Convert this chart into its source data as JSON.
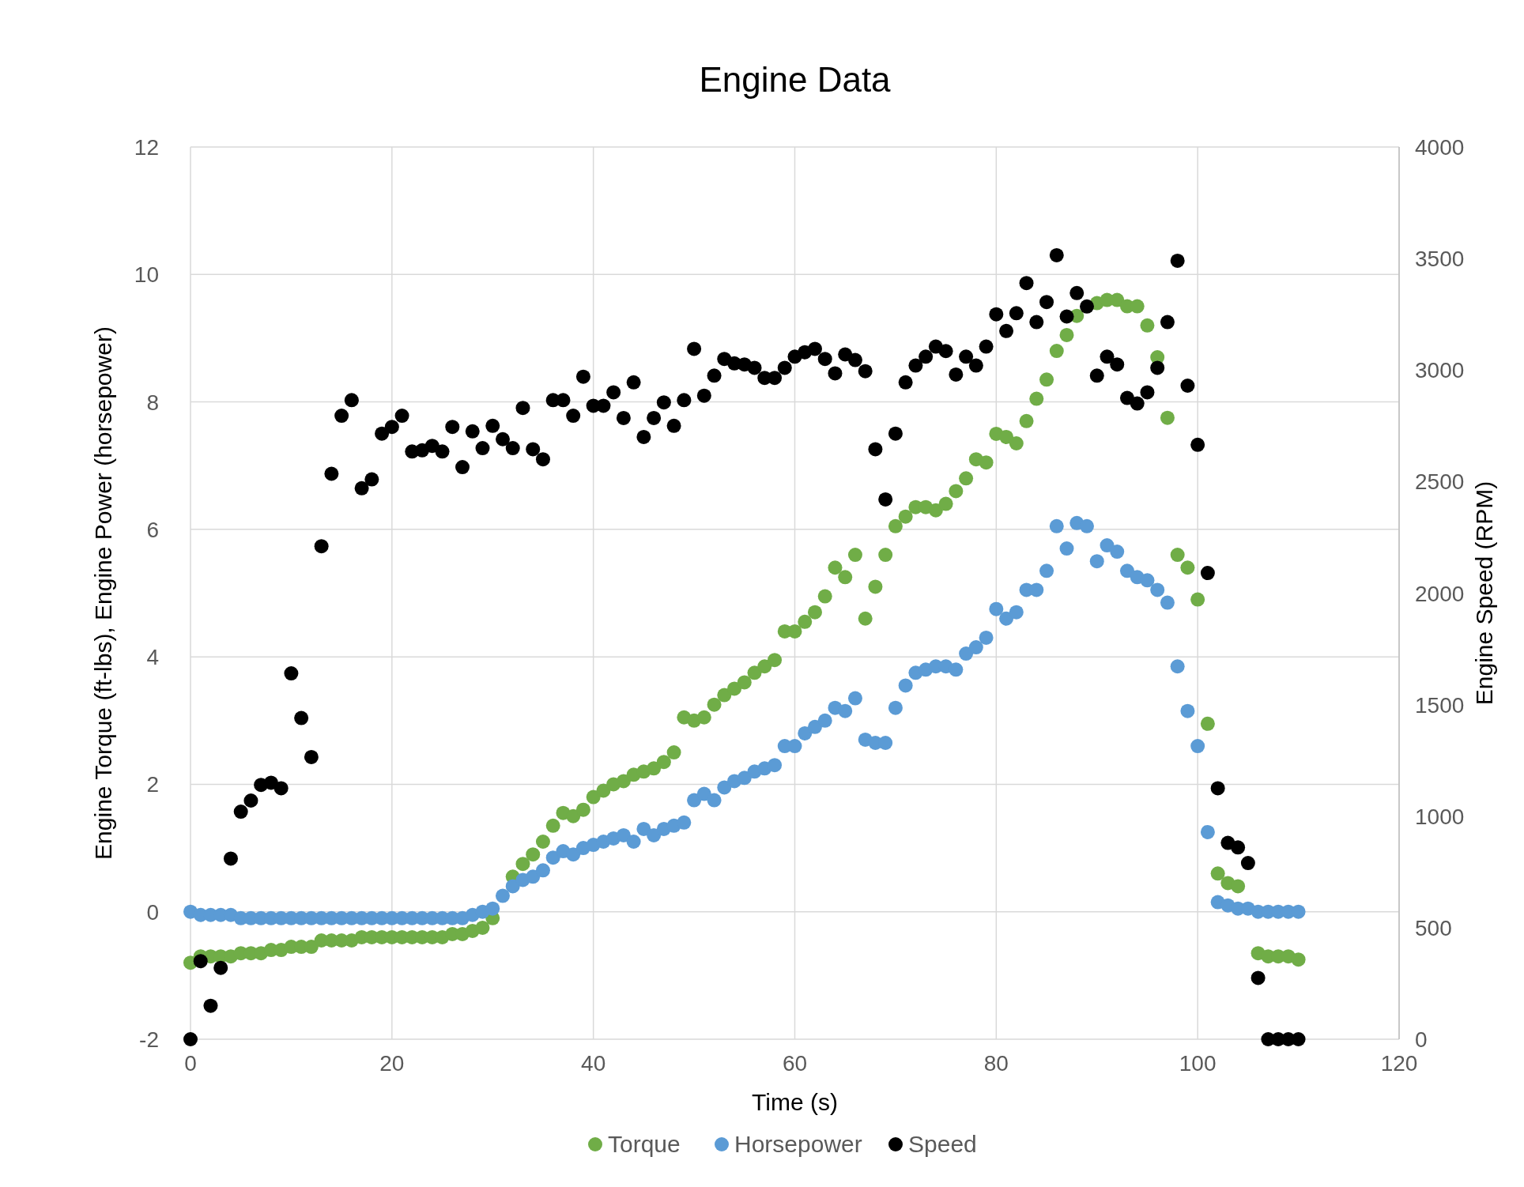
{
  "chart_data": {
    "type": "scatter",
    "title": "Engine Data",
    "xlabel": "Time (s)",
    "ylabel": "Engine Torque (ft-lbs), Engine Power (horsepower)",
    "y2label": "Engine Speed (RPM)",
    "x": [
      0,
      1,
      2,
      3,
      4,
      5,
      6,
      7,
      8,
      9,
      10,
      11,
      12,
      13,
      14,
      15,
      16,
      17,
      18,
      19,
      20,
      21,
      22,
      23,
      24,
      25,
      26,
      27,
      28,
      29,
      30,
      31,
      32,
      33,
      34,
      35,
      36,
      37,
      38,
      39,
      40,
      41,
      42,
      43,
      44,
      45,
      46,
      47,
      48,
      49,
      50,
      51,
      52,
      53,
      54,
      55,
      56,
      57,
      58,
      59,
      60,
      61,
      62,
      63,
      64,
      65,
      66,
      67,
      68,
      69,
      70,
      71,
      72,
      73,
      74,
      75,
      76,
      77,
      78,
      79,
      80,
      81,
      82,
      83,
      84,
      85,
      86,
      87,
      88,
      89,
      90,
      91,
      92,
      93,
      94,
      95,
      96,
      97,
      98,
      99,
      100,
      101,
      102,
      103,
      104,
      105,
      106,
      107,
      108,
      109,
      110
    ],
    "xlim": [
      0,
      120
    ],
    "xticks": [
      0,
      20,
      40,
      60,
      80,
      100,
      120
    ],
    "ylim": [
      -2,
      12
    ],
    "yticks": [
      -2,
      0,
      2,
      4,
      6,
      8,
      10,
      12
    ],
    "y2lim": [
      0,
      4000
    ],
    "y2ticks": [
      0,
      500,
      1000,
      1500,
      2000,
      2500,
      3000,
      3500,
      4000
    ],
    "grid": true,
    "legend": "bottom",
    "marker": "circle",
    "series": [
      {
        "name": "Torque",
        "color": "#70ad47",
        "values": [
          -0.8,
          -0.7,
          -0.7,
          -0.7,
          -0.7,
          -0.65,
          -0.65,
          -0.65,
          -0.6,
          -0.6,
          -0.55,
          -0.55,
          -0.55,
          -0.45,
          -0.45,
          -0.45,
          -0.45,
          -0.4,
          -0.4,
          -0.4,
          -0.4,
          -0.4,
          -0.4,
          -0.4,
          -0.4,
          -0.4,
          -0.35,
          -0.35,
          -0.3,
          -0.25,
          -0.1,
          null,
          0.55,
          0.75,
          0.9,
          1.1,
          1.35,
          1.55,
          1.5,
          1.6,
          1.8,
          1.9,
          2.0,
          2.05,
          2.15,
          2.2,
          2.25,
          2.35,
          2.5,
          3.05,
          3.0,
          3.05,
          3.25,
          3.4,
          3.5,
          3.6,
          3.75,
          3.85,
          3.95,
          4.4,
          4.4,
          4.55,
          4.7,
          4.95,
          5.4,
          5.25,
          5.6,
          4.6,
          5.1,
          5.6,
          6.05,
          6.2,
          6.35,
          6.35,
          6.3,
          6.4,
          6.6,
          6.8,
          7.1,
          7.05,
          7.5,
          7.45,
          7.35,
          7.7,
          8.05,
          8.35,
          8.8,
          9.05,
          9.35,
          null,
          9.55,
          9.6,
          9.6,
          9.5,
          9.5,
          9.2,
          8.7,
          7.75,
          5.6,
          5.4,
          4.9,
          2.95,
          0.6,
          0.45,
          0.4,
          null,
          -0.65,
          -0.7,
          -0.7,
          -0.7,
          -0.75
        ]
      },
      {
        "name": "Horsepower",
        "color": "#5b9bd5",
        "values": [
          0,
          -0.05,
          -0.05,
          -0.05,
          -0.05,
          -0.1,
          -0.1,
          -0.1,
          -0.1,
          -0.1,
          -0.1,
          -0.1,
          -0.1,
          -0.1,
          -0.1,
          -0.1,
          -0.1,
          -0.1,
          -0.1,
          -0.1,
          -0.1,
          -0.1,
          -0.1,
          -0.1,
          -0.1,
          -0.1,
          -0.1,
          -0.1,
          -0.05,
          0,
          0.05,
          0.25,
          0.4,
          0.5,
          0.55,
          0.65,
          0.85,
          0.95,
          0.9,
          1.0,
          1.05,
          1.1,
          1.15,
          1.2,
          1.1,
          1.3,
          1.2,
          1.3,
          1.35,
          1.4,
          1.75,
          1.85,
          1.75,
          1.95,
          2.05,
          2.1,
          2.2,
          2.25,
          2.3,
          2.6,
          2.6,
          2.8,
          2.9,
          3.0,
          3.2,
          3.15,
          3.35,
          2.7,
          2.65,
          2.65,
          3.2,
          3.55,
          3.75,
          3.8,
          3.85,
          3.85,
          3.8,
          4.05,
          4.15,
          4.3,
          4.75,
          4.6,
          4.7,
          5.05,
          5.05,
          5.35,
          6.05,
          5.7,
          6.1,
          6.05,
          5.5,
          5.75,
          5.65,
          5.35,
          5.25,
          5.2,
          5.05,
          4.85,
          3.85,
          3.15,
          2.6,
          1.25,
          0.15,
          0.1,
          0.05,
          0.05,
          0,
          0,
          0,
          0,
          0
        ]
      },
      {
        "name": "Speed",
        "color": "#000000",
        "axis": "y2",
        "values": [
          0,
          350,
          150,
          320,
          810,
          1020,
          1070,
          1140,
          1150,
          1125,
          1640,
          1440,
          1265,
          2210,
          2535,
          2795,
          2865,
          2470,
          2510,
          2715,
          2745,
          2795,
          2635,
          2640,
          2660,
          2635,
          2745,
          2565,
          2725,
          2650,
          2750,
          2690,
          2650,
          2830,
          2645,
          2600,
          2865,
          2865,
          2795,
          2970,
          2840,
          2840,
          2900,
          2785,
          2945,
          2700,
          2785,
          2855,
          2750,
          2865,
          3095,
          2885,
          2975,
          3050,
          3030,
          3025,
          3010,
          2965,
          2965,
          3010,
          3060,
          3080,
          3095,
          3050,
          2985,
          3070,
          3045,
          2995,
          2645,
          2420,
          2715,
          2945,
          3020,
          3060,
          3105,
          3085,
          2980,
          3060,
          3020,
          3105,
          3250,
          3175,
          3255,
          3390,
          3215,
          3305,
          3515,
          3240,
          3345,
          3285,
          2975,
          3060,
          3025,
          2875,
          2850,
          2900,
          3010,
          3215,
          3490,
          2930,
          2665,
          2090,
          1125,
          880,
          860,
          790,
          275,
          0,
          0,
          0,
          0
        ]
      }
    ]
  }
}
